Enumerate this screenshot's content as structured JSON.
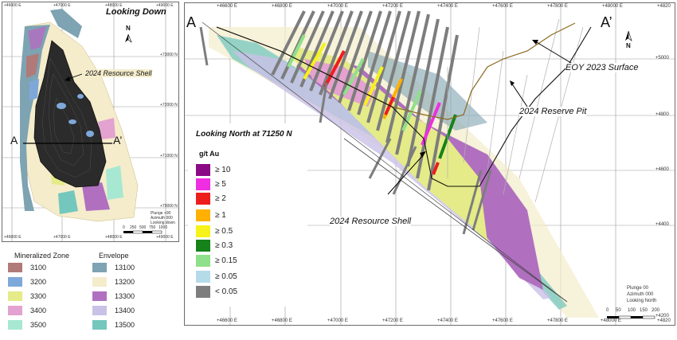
{
  "plan_view": {
    "title": "Looking Down",
    "north_label": "N",
    "section_start": "A",
    "section_end": "A’",
    "resource_label": "2024 Resource Shell",
    "eastings_top": [
      "+46000 E",
      "+47000 E",
      "+48000 E",
      "+49000 E"
    ],
    "eastings_bottom": [
      "+46000 E",
      "+47000 E",
      "+48000 E",
      "+49000 E"
    ],
    "northings": [
      "+73000 N",
      "+72000 N",
      "+71000 N",
      "+70000 N"
    ],
    "plunge_info": [
      "Plunge +90",
      "Azimuth 000",
      "Looking down"
    ],
    "scale_ticks": [
      "0",
      "250",
      "500",
      "750",
      "1000"
    ]
  },
  "zone_legend": {
    "mineralized_title": "Mineralized Zone",
    "envelope_title": "Envelope",
    "mineralized": [
      {
        "label": "3100",
        "color": "#b07a78"
      },
      {
        "label": "3200",
        "color": "#7fa8da"
      },
      {
        "label": "3300",
        "color": "#e4eb88"
      },
      {
        "label": "3400",
        "color": "#e3a2cf"
      },
      {
        "label": "3500",
        "color": "#a7e8d2"
      }
    ],
    "envelope": [
      {
        "label": "13100",
        "color": "#7ea3b2"
      },
      {
        "label": "13200",
        "color": "#f4eccb"
      },
      {
        "label": "13300",
        "color": "#b070bf"
      },
      {
        "label": "13400",
        "color": "#c9c1e6"
      },
      {
        "label": "13500",
        "color": "#74c7bd"
      }
    ]
  },
  "section_view": {
    "section_start": "A",
    "section_end": "A’",
    "north_label": "N",
    "eastings_top": [
      "+46600 E",
      "+46800 E",
      "+47000 E",
      "+47200 E",
      "+47400 E",
      "+47600 E",
      "+47800 E",
      "+48000 E",
      "+4820"
    ],
    "eastings_bottom": [
      "+46600 E",
      "+46800 E",
      "+47000 E",
      "+47200 E",
      "+47400 E",
      "+47600 E",
      "+47800 E",
      "+48000 E",
      "+4820"
    ],
    "elevations": [
      "+5000",
      "+4800",
      "+4600",
      "+4400",
      "+4200"
    ],
    "eoy_label": "EOY 2023 Surface",
    "reserve_pit_label": "2024 Reserve Pit",
    "resource_label": "2024 Resource Shell",
    "view_title": "Looking North at 71250 N",
    "plunge_info": [
      "Plunge 00",
      "Azimuth 000",
      "Looking North"
    ],
    "scale_ticks": [
      "0",
      "50",
      "100",
      "150",
      "200"
    ]
  },
  "grade_legend": {
    "title": "g/t Au",
    "items": [
      {
        "label": "≥ 10",
        "color": "#8b0a85"
      },
      {
        "label": "≥ 5",
        "color": "#ef2ee3"
      },
      {
        "label": "≥ 2",
        "color": "#ee1d1d"
      },
      {
        "label": "≥ 1",
        "color": "#ffb000"
      },
      {
        "label": "≥ 0.5",
        "color": "#f6f21a"
      },
      {
        "label": "≥ 0.3",
        "color": "#15821a"
      },
      {
        "label": "≥ 0.15",
        "color": "#8fe08a"
      },
      {
        "label": "≥ 0.05",
        "color": "#b5dbe8"
      },
      {
        "label": "< 0.05",
        "color": "#7d7d7d"
      }
    ]
  }
}
